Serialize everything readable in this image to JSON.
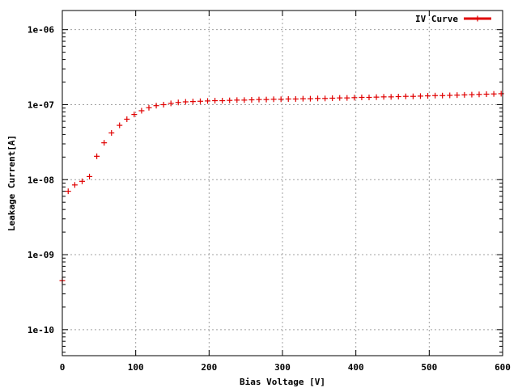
{
  "chart_data": {
    "type": "scatter",
    "title": "",
    "xlabel": "Bias Voltage [V]",
    "ylabel": "Leakage Current[A]",
    "x_scale": "linear",
    "y_scale": "log",
    "xlim": [
      0,
      600
    ],
    "ylim": [
      4.5e-11,
      1.8e-06
    ],
    "x_ticks": [
      0,
      100,
      200,
      300,
      400,
      500,
      600
    ],
    "x_tick_labels": [
      "0",
      "100",
      "200",
      "300",
      "400",
      "500",
      "600"
    ],
    "y_ticks": [
      1e-10,
      1e-09,
      1e-08,
      1e-07,
      1e-06
    ],
    "y_tick_labels": [
      "1e-10",
      "1e-09",
      "1e-08",
      "1e-07",
      "1e-06"
    ],
    "grid": true,
    "legend": {
      "position": "top-right",
      "entries": [
        "IV Curve"
      ]
    },
    "series": [
      {
        "name": "IV Curve",
        "color": "#e00000",
        "marker": "plus",
        "points": [
          [
            0,
            4.5e-10
          ],
          [
            8,
            7e-09
          ],
          [
            17,
            8.5e-09
          ],
          [
            27,
            9.5e-09
          ],
          [
            37,
            1.1e-08
          ],
          [
            47,
            2.05e-08
          ],
          [
            57,
            3.1e-08
          ],
          [
            67,
            4.2e-08
          ],
          [
            78,
            5.3e-08
          ],
          [
            88,
            6.4e-08
          ],
          [
            98,
            7.4e-08
          ],
          [
            108,
            8.3e-08
          ],
          [
            118,
            9.1e-08
          ],
          [
            128,
            9.7e-08
          ],
          [
            138,
            1e-07
          ],
          [
            148,
            1.04e-07
          ],
          [
            158,
            1.07e-07
          ],
          [
            168,
            1.09e-07
          ],
          [
            178,
            1.1e-07
          ],
          [
            188,
            1.11e-07
          ],
          [
            198,
            1.12e-07
          ],
          [
            208,
            1.13e-07
          ],
          [
            218,
            1.13e-07
          ],
          [
            228,
            1.14e-07
          ],
          [
            238,
            1.15e-07
          ],
          [
            248,
            1.15e-07
          ],
          [
            258,
            1.16e-07
          ],
          [
            268,
            1.17e-07
          ],
          [
            278,
            1.17e-07
          ],
          [
            288,
            1.18e-07
          ],
          [
            298,
            1.18e-07
          ],
          [
            308,
            1.19e-07
          ],
          [
            318,
            1.19e-07
          ],
          [
            328,
            1.2e-07
          ],
          [
            338,
            1.2e-07
          ],
          [
            348,
            1.21e-07
          ],
          [
            358,
            1.21e-07
          ],
          [
            368,
            1.22e-07
          ],
          [
            378,
            1.23e-07
          ],
          [
            388,
            1.23e-07
          ],
          [
            398,
            1.24e-07
          ],
          [
            408,
            1.25e-07
          ],
          [
            418,
            1.25e-07
          ],
          [
            428,
            1.26e-07
          ],
          [
            438,
            1.27e-07
          ],
          [
            448,
            1.27e-07
          ],
          [
            458,
            1.28e-07
          ],
          [
            468,
            1.29e-07
          ],
          [
            478,
            1.29e-07
          ],
          [
            488,
            1.3e-07
          ],
          [
            498,
            1.31e-07
          ],
          [
            508,
            1.32e-07
          ],
          [
            518,
            1.32e-07
          ],
          [
            528,
            1.33e-07
          ],
          [
            538,
            1.34e-07
          ],
          [
            548,
            1.35e-07
          ],
          [
            558,
            1.36e-07
          ],
          [
            568,
            1.37e-07
          ],
          [
            578,
            1.38e-07
          ],
          [
            588,
            1.39e-07
          ],
          [
            598,
            1.4e-07
          ]
        ]
      }
    ]
  }
}
